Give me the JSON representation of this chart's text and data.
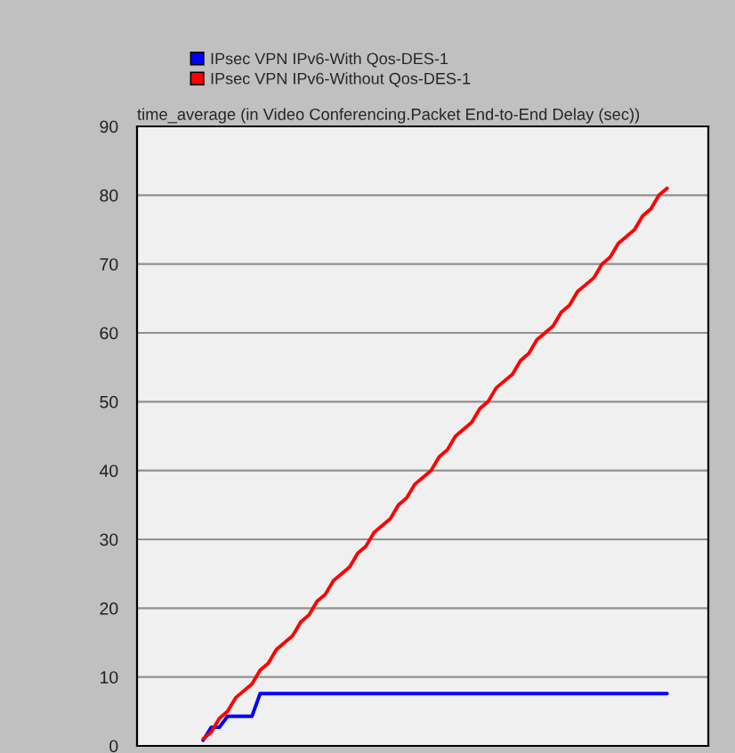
{
  "chart_data": {
    "type": "line",
    "title": "time_average (in Video Conferencing.Packet End-to-End Delay (sec))",
    "categories": [
      null,
      null,
      null,
      null,
      null,
      null,
      null,
      null,
      null,
      null,
      null,
      null,
      null,
      null,
      null,
      null,
      null,
      null,
      null,
      null,
      null,
      null,
      null,
      null,
      null,
      null,
      null,
      null,
      null,
      null,
      null,
      null,
      null,
      null,
      null,
      null,
      null,
      null,
      null,
      null,
      null,
      null,
      null,
      null,
      null,
      null,
      null,
      null,
      null,
      null,
      null,
      null,
      null,
      null,
      null,
      null,
      null,
      null
    ],
    "series": [
      {
        "name": "IPsec VPN IPv6-With Qos-DES-1",
        "color": "#0000ff",
        "values": [
          0.8,
          2.7,
          2.7,
          4.3,
          4.3,
          4.3,
          4.3,
          7.6,
          7.6,
          7.6,
          7.6,
          7.6,
          7.6,
          7.6,
          7.6,
          7.6,
          7.6,
          7.6,
          7.6,
          7.6,
          7.6,
          7.6,
          7.6,
          7.6,
          7.6,
          7.6,
          7.6,
          7.6,
          7.6,
          7.6,
          7.6,
          7.6,
          7.6,
          7.6,
          7.6,
          7.6,
          7.6,
          7.6,
          7.6,
          7.6,
          7.6,
          7.6,
          7.6,
          7.6,
          7.6,
          7.6,
          7.6,
          7.6,
          7.6,
          7.6,
          7.6,
          7.6,
          7.6,
          7.6,
          7.6,
          7.6,
          7.6,
          7.6
        ]
      },
      {
        "name": "IPsec VPN IPv6-Without Qos-DES-1",
        "color": "#ff0000",
        "values": [
          1,
          2,
          4,
          5,
          7,
          8,
          9,
          11,
          12,
          14,
          15,
          16,
          18,
          19,
          21,
          22,
          24,
          25,
          26,
          28,
          29,
          31,
          32,
          33,
          35,
          36,
          38,
          39,
          40,
          42,
          43,
          45,
          46,
          47,
          49,
          50,
          52,
          53,
          54,
          56,
          57,
          59,
          60,
          61,
          63,
          64,
          66,
          67,
          68,
          70,
          71,
          73,
          74,
          75,
          77,
          78,
          80,
          81
        ]
      }
    ],
    "ylim": [
      0,
      90
    ],
    "yticks": [
      0,
      10,
      20,
      30,
      40,
      50,
      60,
      70,
      80,
      90
    ],
    "grid": "y",
    "legend": "top left"
  }
}
